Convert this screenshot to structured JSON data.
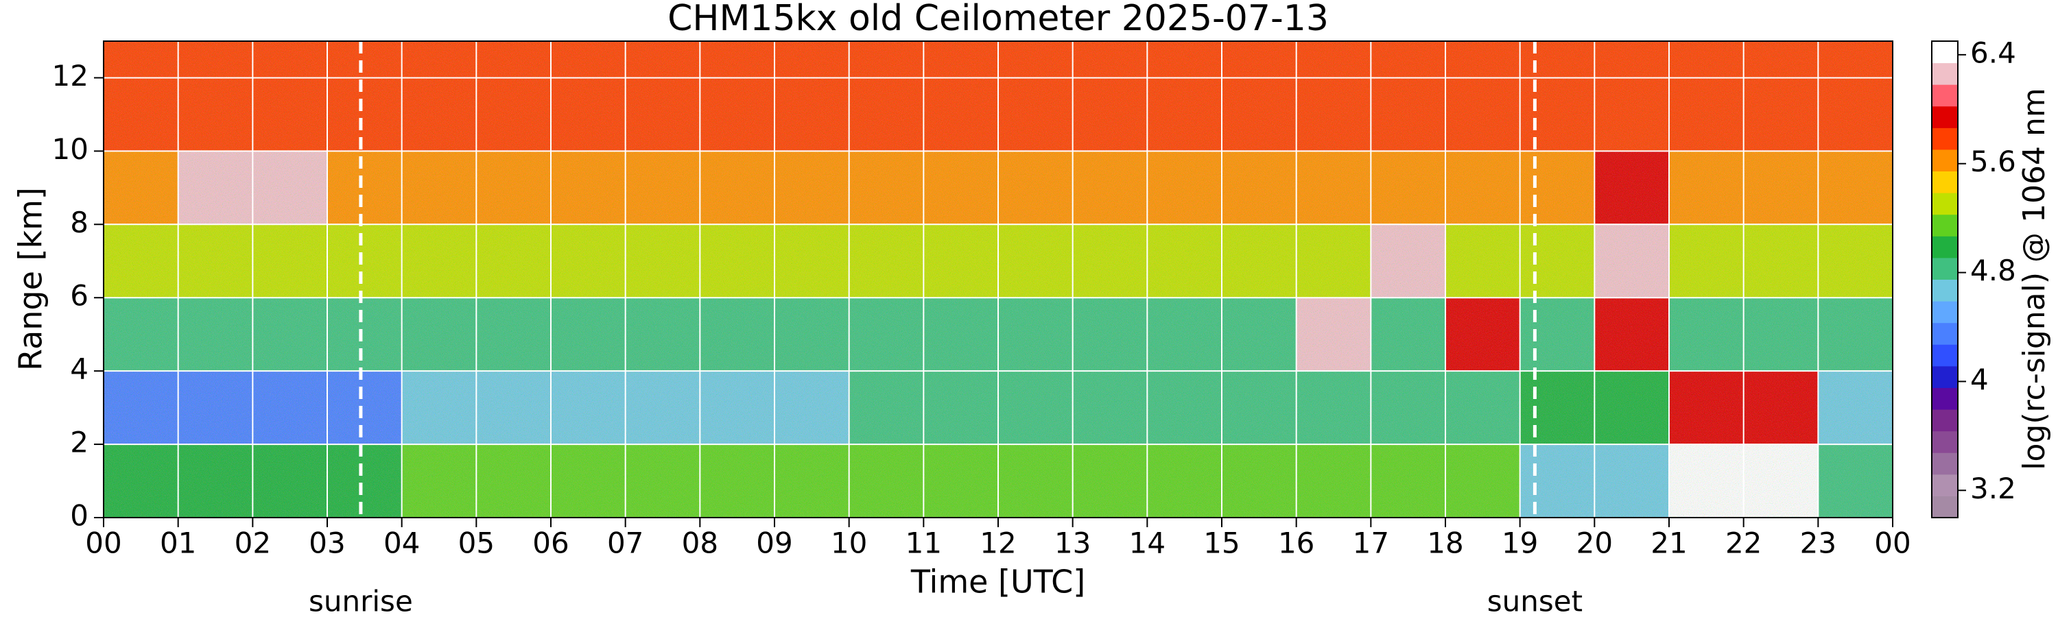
{
  "chart_data": {
    "type": "heatmap",
    "title": "CHM15kx old Ceilometer 2025-07-13",
    "xlabel": "Time [UTC]",
    "ylabel": "Range [km]",
    "colorbar_label": "log(rc-signal) @ 1064 nm",
    "xlim": [
      0,
      24
    ],
    "ylim": [
      0,
      13
    ],
    "xticks": [
      {
        "value": 0,
        "label": "00"
      },
      {
        "value": 1,
        "label": "01"
      },
      {
        "value": 2,
        "label": "02"
      },
      {
        "value": 3,
        "label": "03"
      },
      {
        "value": 4,
        "label": "04"
      },
      {
        "value": 5,
        "label": "05"
      },
      {
        "value": 6,
        "label": "06"
      },
      {
        "value": 7,
        "label": "07"
      },
      {
        "value": 8,
        "label": "08"
      },
      {
        "value": 9,
        "label": "09"
      },
      {
        "value": 10,
        "label": "10"
      },
      {
        "value": 11,
        "label": "11"
      },
      {
        "value": 12,
        "label": "12"
      },
      {
        "value": 13,
        "label": "13"
      },
      {
        "value": 14,
        "label": "14"
      },
      {
        "value": 15,
        "label": "15"
      },
      {
        "value": 16,
        "label": "16"
      },
      {
        "value": 17,
        "label": "17"
      },
      {
        "value": 18,
        "label": "18"
      },
      {
        "value": 19,
        "label": "19"
      },
      {
        "value": 20,
        "label": "20"
      },
      {
        "value": 21,
        "label": "21"
      },
      {
        "value": 22,
        "label": "22"
      },
      {
        "value": 23,
        "label": "23"
      },
      {
        "value": 24,
        "label": "00"
      }
    ],
    "yticks": [
      0,
      2,
      4,
      6,
      8,
      10,
      12
    ],
    "grid": true,
    "zlim": [
      3.0,
      6.5
    ],
    "zticks": [
      3.2,
      4,
      4.8,
      5.6,
      6.4
    ],
    "colors": [
      "#a58aa5",
      "#b090b0",
      "#9a6fa0",
      "#8a4a94",
      "#7a2a8c",
      "#5a0aa0",
      "#2020d0",
      "#3050ff",
      "#4a80ff",
      "#60a8ff",
      "#70c8e0",
      "#40c080",
      "#20b040",
      "#60d020",
      "#c0e000",
      "#ffd000",
      "#ff9000",
      "#ff4000",
      "#e00000",
      "#ff6070",
      "#f0c0c8",
      "#ffffff"
    ],
    "xbins": [
      0,
      1,
      2,
      3,
      4,
      5,
      6,
      7,
      8,
      9,
      10,
      11,
      12,
      13,
      14,
      15,
      16,
      17,
      18,
      19,
      20,
      21,
      22,
      23,
      24
    ],
    "ybins": [
      0,
      2,
      4,
      6,
      8,
      10,
      12,
      13
    ],
    "z": [
      [
        5.0,
        5.0,
        5.0,
        5.0,
        5.1,
        5.1,
        5.1,
        5.1,
        5.1,
        5.2,
        5.2,
        5.2,
        5.2,
        5.2,
        5.2,
        5.2,
        5.2,
        5.2,
        5.2,
        4.7,
        4.7,
        6.4,
        6.4,
        4.8
      ],
      [
        4.3,
        4.3,
        4.3,
        4.3,
        4.6,
        4.6,
        4.6,
        4.6,
        4.6,
        4.6,
        4.9,
        4.9,
        4.9,
        4.9,
        4.9,
        4.9,
        4.9,
        4.9,
        4.9,
        5.0,
        5.0,
        6.0,
        6.0,
        4.6
      ],
      [
        4.8,
        4.8,
        4.8,
        4.8,
        4.8,
        4.8,
        4.8,
        4.8,
        4.8,
        4.8,
        4.8,
        4.8,
        4.8,
        4.8,
        4.8,
        4.8,
        6.2,
        4.8,
        5.9,
        4.8,
        6.0,
        4.8,
        4.8,
        4.8
      ],
      [
        5.3,
        5.3,
        5.3,
        5.3,
        5.3,
        5.3,
        5.3,
        5.3,
        5.3,
        5.3,
        5.3,
        5.3,
        5.3,
        5.3,
        5.3,
        5.3,
        5.3,
        6.2,
        5.3,
        5.3,
        6.3,
        5.3,
        5.3,
        5.3
      ],
      [
        5.6,
        6.2,
        6.2,
        5.6,
        5.6,
        5.6,
        5.6,
        5.6,
        5.6,
        5.6,
        5.6,
        5.6,
        5.6,
        5.6,
        5.6,
        5.6,
        5.6,
        5.6,
        5.6,
        5.6,
        5.9,
        5.6,
        5.6,
        5.6
      ],
      [
        5.8,
        5.8,
        5.8,
        5.8,
        5.8,
        5.8,
        5.8,
        5.8,
        5.8,
        5.8,
        5.8,
        5.8,
        5.8,
        5.8,
        5.8,
        5.8,
        5.8,
        5.8,
        5.8,
        5.8,
        5.8,
        5.8,
        5.8,
        5.8
      ],
      [
        5.8,
        5.8,
        5.8,
        5.8,
        5.8,
        5.8,
        5.8,
        5.8,
        5.8,
        5.8,
        5.8,
        5.8,
        5.8,
        5.8,
        5.8,
        5.8,
        5.8,
        5.8,
        5.8,
        5.8,
        5.8,
        5.8,
        5.8,
        5.8
      ]
    ],
    "annotations": [
      {
        "text": "sunrise",
        "x": 3.45
      },
      {
        "text": "sunset",
        "x": 19.2
      }
    ]
  }
}
